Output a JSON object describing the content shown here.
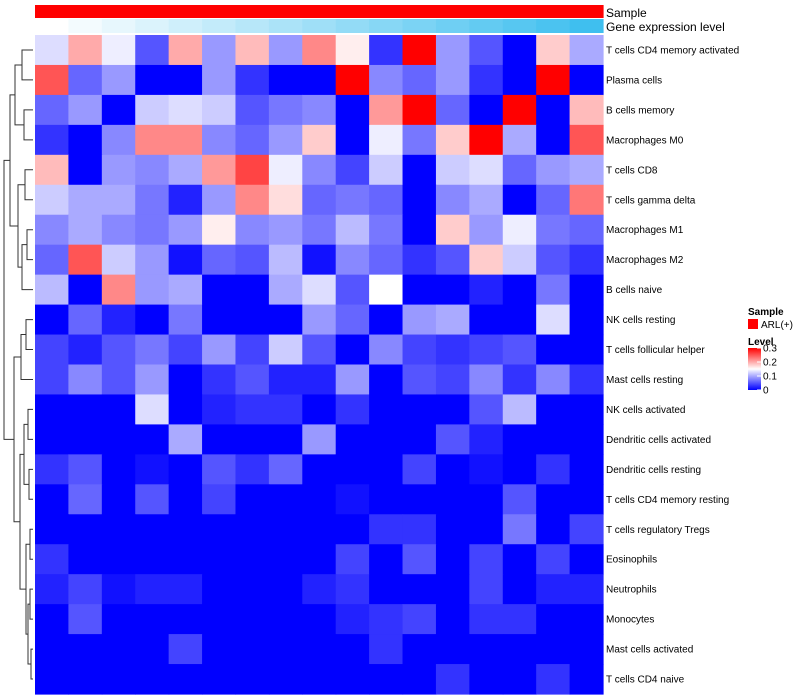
{
  "chart_data": {
    "type": "heatmap",
    "annotation_tracks": [
      {
        "name": "Sample",
        "colors": [
          "#ff0000",
          "#ff0000",
          "#ff0000",
          "#ff0000",
          "#ff0000",
          "#ff0000",
          "#ff0000",
          "#ff0000",
          "#ff0000",
          "#ff0000",
          "#ff0000",
          "#ff0000",
          "#ff0000",
          "#ff0000",
          "#ff0000",
          "#ff0000",
          "#ff0000"
        ]
      },
      {
        "name": "Gene expression level",
        "colors": [
          "#ffffff",
          "#f3fbfe",
          "#e7f7fd",
          "#dbf3fc",
          "#cfeffb",
          "#c3ebfa",
          "#b7e7f9",
          "#abe3f8",
          "#9fdff7",
          "#93dbf6",
          "#87d7f5",
          "#7bd3f4",
          "#6fcff3",
          "#63cbf2",
          "#57c7f1",
          "#4bc3f0",
          "#3fbfef"
        ]
      }
    ],
    "rows": [
      "T cells CD4 memory activated",
      "Plasma cells",
      "B cells memory",
      "Macrophages M0",
      "T cells CD8",
      "T cells gamma delta",
      "Macrophages M1",
      "Macrophages M2",
      "B cells naive",
      "NK cells resting",
      "T cells follicular helper",
      "Mast cells resting",
      "NK cells activated",
      "Dendritic cells activated",
      "Dendritic cells resting",
      "T cells CD4 memory resting",
      "T cells regulatory  Tregs",
      "Eosinophils",
      "Neutrophils",
      "Monocytes",
      "Mast cells activated",
      "T cells CD4 naive"
    ],
    "values": [
      [
        0.13,
        0.2,
        0.14,
        0.05,
        0.2,
        0.09,
        0.19,
        0.09,
        0.22,
        0.16,
        0.03,
        0.3,
        0.09,
        0.05,
        0.0,
        0.18,
        0.1
      ],
      [
        0.25,
        0.06,
        0.09,
        0.0,
        0.0,
        0.09,
        0.03,
        0.0,
        0.0,
        0.3,
        0.08,
        0.06,
        0.09,
        0.03,
        0.0,
        0.3,
        0.0
      ],
      [
        0.06,
        0.09,
        0.0,
        0.12,
        0.13,
        0.12,
        0.05,
        0.07,
        0.08,
        0.0,
        0.21,
        0.3,
        0.06,
        0.0,
        0.3,
        0.0,
        0.19
      ],
      [
        0.03,
        0.0,
        0.08,
        0.22,
        0.22,
        0.08,
        0.06,
        0.09,
        0.18,
        0.0,
        0.14,
        0.07,
        0.18,
        0.3,
        0.1,
        0.0,
        0.25
      ],
      [
        0.19,
        0.0,
        0.09,
        0.08,
        0.1,
        0.21,
        0.26,
        0.14,
        0.08,
        0.04,
        0.12,
        0.0,
        0.12,
        0.13,
        0.06,
        0.09,
        0.1
      ],
      [
        0.12,
        0.1,
        0.1,
        0.07,
        0.02,
        0.09,
        0.22,
        0.17,
        0.06,
        0.07,
        0.06,
        0.0,
        0.08,
        0.1,
        0.0,
        0.06,
        0.23
      ],
      [
        0.08,
        0.1,
        0.08,
        0.07,
        0.09,
        0.16,
        0.08,
        0.09,
        0.07,
        0.11,
        0.07,
        0.0,
        0.18,
        0.09,
        0.14,
        0.07,
        0.06
      ],
      [
        0.06,
        0.25,
        0.12,
        0.09,
        0.01,
        0.06,
        0.05,
        0.11,
        0.01,
        0.08,
        0.06,
        0.03,
        0.05,
        0.18,
        0.12,
        0.05,
        0.03
      ],
      [
        0.11,
        0.0,
        0.22,
        0.09,
        0.1,
        0.0,
        0.0,
        0.1,
        0.13,
        0.05,
        0.15,
        0.0,
        0.0,
        0.02,
        0.0,
        0.07,
        0.0
      ],
      [
        0.0,
        0.06,
        0.02,
        0.0,
        0.07,
        0.0,
        0.0,
        0.0,
        0.09,
        0.06,
        0.0,
        0.09,
        0.1,
        0.0,
        0.0,
        0.13,
        0.0
      ],
      [
        0.04,
        0.02,
        0.05,
        0.07,
        0.04,
        0.09,
        0.04,
        0.12,
        0.05,
        0.0,
        0.08,
        0.04,
        0.03,
        0.04,
        0.05,
        0.0,
        0.0
      ],
      [
        0.04,
        0.08,
        0.05,
        0.09,
        0.0,
        0.03,
        0.05,
        0.02,
        0.02,
        0.09,
        0.0,
        0.05,
        0.04,
        0.08,
        0.03,
        0.08,
        0.03
      ],
      [
        0.0,
        0.0,
        0.0,
        0.13,
        0.0,
        0.02,
        0.03,
        0.03,
        0.0,
        0.03,
        0.0,
        0.0,
        0.0,
        0.05,
        0.11,
        0.0,
        0.0
      ],
      [
        0.0,
        0.0,
        0.0,
        0.0,
        0.1,
        0.0,
        0.0,
        0.0,
        0.09,
        0.0,
        0.0,
        0.0,
        0.05,
        0.02,
        0.0,
        0.0,
        0.0
      ],
      [
        0.03,
        0.05,
        0.0,
        0.01,
        0.0,
        0.05,
        0.03,
        0.06,
        0.0,
        0.0,
        0.0,
        0.04,
        0.0,
        0.01,
        0.0,
        0.03,
        0.0
      ],
      [
        0.0,
        0.06,
        0.0,
        0.05,
        0.0,
        0.04,
        0.0,
        0.0,
        0.0,
        0.01,
        0.0,
        0.0,
        0.0,
        0.0,
        0.05,
        0.0,
        0.0
      ],
      [
        0.0,
        0.0,
        0.0,
        0.0,
        0.0,
        0.0,
        0.0,
        0.0,
        0.0,
        0.0,
        0.03,
        0.03,
        0.0,
        0.0,
        0.07,
        0.0,
        0.04
      ],
      [
        0.03,
        0.0,
        0.0,
        0.0,
        0.0,
        0.0,
        0.0,
        0.0,
        0.0,
        0.04,
        0.0,
        0.05,
        0.0,
        0.04,
        0.0,
        0.04,
        0.0
      ],
      [
        0.02,
        0.04,
        0.01,
        0.02,
        0.02,
        0.0,
        0.0,
        0.0,
        0.02,
        0.03,
        0.0,
        0.0,
        0.0,
        0.04,
        0.0,
        0.02,
        0.02
      ],
      [
        0.0,
        0.05,
        0.0,
        0.0,
        0.0,
        0.0,
        0.0,
        0.0,
        0.0,
        0.02,
        0.03,
        0.04,
        0.0,
        0.03,
        0.03,
        0.0,
        0.0
      ],
      [
        0.0,
        0.0,
        0.0,
        0.0,
        0.04,
        0.0,
        0.0,
        0.0,
        0.0,
        0.0,
        0.03,
        0.0,
        0.0,
        0.0,
        0.0,
        0.0,
        0.0
      ],
      [
        0.0,
        0.0,
        0.0,
        0.0,
        0.0,
        0.0,
        0.0,
        0.0,
        0.0,
        0.0,
        0.0,
        0.0,
        0.03,
        0.0,
        0.0,
        0.03,
        0.0
      ]
    ],
    "color_scale": {
      "min": 0,
      "mid": 0.15,
      "max": 0.3,
      "low_color": "#0000ff",
      "mid_color": "#ffffff",
      "high_color": "#ff0000"
    },
    "legend": {
      "sample_title": "Sample",
      "sample_entry": "ARL(+)",
      "sample_color": "#ff0000",
      "level_title": "Level",
      "level_ticks": [
        "0.3",
        "0.2",
        "0.1",
        "0"
      ],
      "level_tick_values": [
        0.3,
        0.2,
        0.1,
        0
      ]
    },
    "row_dendrogram": true
  }
}
